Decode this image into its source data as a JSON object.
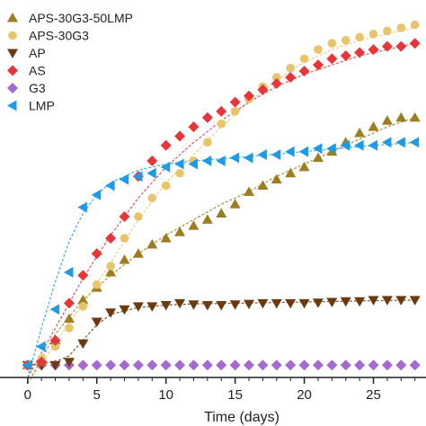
{
  "chart_data": {
    "type": "scatter",
    "xlabel": "Time (days)",
    "ylabel": "",
    "xlim": [
      -2,
      28.8
    ],
    "ylim": [
      -0.2,
      5.9
    ],
    "xticks": [
      "0",
      "5",
      "10",
      "15",
      "20",
      "25"
    ],
    "grid": false,
    "legend": "top-left",
    "series": [
      {
        "name": "APS-30G3-50LMP",
        "marker": "triangle-up",
        "color": "#9c7d1f",
        "x": [
          0,
          1,
          2,
          3,
          4,
          5,
          6,
          7,
          8,
          9,
          10,
          11,
          12,
          13,
          14,
          15,
          16,
          17,
          18,
          19,
          20,
          21,
          22,
          23,
          24,
          25,
          26,
          27,
          28
        ],
        "y": [
          0,
          0.05,
          0.4,
          0.75,
          1.05,
          1.25,
          1.5,
          1.7,
          1.8,
          1.95,
          2.05,
          2.15,
          2.25,
          2.35,
          2.45,
          2.6,
          2.8,
          2.9,
          3.0,
          3.1,
          3.2,
          3.35,
          3.45,
          3.6,
          3.75,
          3.85,
          3.95,
          4.0,
          4.0
        ]
      },
      {
        "name": "APS-30G3",
        "marker": "circle",
        "color": "#e8c46a",
        "x": [
          0,
          1,
          2,
          3,
          4,
          5,
          6,
          7,
          8,
          9,
          10,
          11,
          12,
          13,
          14,
          15,
          16,
          17,
          18,
          19,
          20,
          21,
          22,
          23,
          24,
          25,
          26,
          27,
          28
        ],
        "y": [
          0,
          0.1,
          0.3,
          0.6,
          0.95,
          1.3,
          1.6,
          2.05,
          2.4,
          2.7,
          2.9,
          3.1,
          3.3,
          3.6,
          3.9,
          4.1,
          4.3,
          4.5,
          4.65,
          4.8,
          4.95,
          5.1,
          5.2,
          5.25,
          5.3,
          5.35,
          5.4,
          5.45,
          5.5
        ]
      },
      {
        "name": "AP",
        "marker": "triangle-down",
        "color": "#6b3a10",
        "x": [
          0,
          1,
          2,
          3,
          4,
          5,
          6,
          7,
          8,
          9,
          10,
          11,
          12,
          13,
          14,
          15,
          16,
          17,
          18,
          19,
          20,
          21,
          22,
          23,
          24,
          25,
          26,
          27,
          28
        ],
        "y": [
          0,
          0,
          0,
          0.05,
          0.35,
          0.7,
          0.85,
          0.9,
          0.95,
          0.95,
          0.97,
          1.0,
          0.98,
          0.97,
          0.97,
          0.98,
          0.99,
          1.0,
          1.0,
          1.0,
          1.0,
          1.01,
          1.02,
          1.03,
          1.03,
          1.05,
          1.05,
          1.05,
          1.05
        ]
      },
      {
        "name": "AS",
        "marker": "diamond",
        "color": "#e8353a",
        "x": [
          0,
          1,
          2,
          3,
          4,
          5,
          6,
          7,
          8,
          9,
          10,
          11,
          12,
          13,
          14,
          15,
          16,
          17,
          18,
          19,
          20,
          21,
          22,
          23,
          24,
          25,
          26,
          27,
          28
        ],
        "y": [
          0,
          0.05,
          0.4,
          1.0,
          1.45,
          1.8,
          2.05,
          2.4,
          3.05,
          3.3,
          3.55,
          3.7,
          3.85,
          4.0,
          4.1,
          4.25,
          4.35,
          4.45,
          4.55,
          4.65,
          4.75,
          4.85,
          4.95,
          5.0,
          5.05,
          5.1,
          5.15,
          5.15,
          5.2
        ]
      },
      {
        "name": "G3",
        "marker": "diamond",
        "color": "#a569d2",
        "x": [
          0,
          1,
          2,
          3,
          4,
          5,
          6,
          7,
          8,
          9,
          10,
          11,
          12,
          13,
          14,
          15,
          16,
          17,
          18,
          19,
          20,
          21,
          22,
          23,
          24,
          25,
          26,
          27,
          28
        ],
        "y": [
          0,
          0,
          0,
          0,
          0,
          0,
          0,
          0,
          0,
          0,
          0,
          0,
          0,
          0,
          0,
          0,
          0,
          0,
          0,
          0,
          0,
          0,
          0,
          0,
          0,
          0,
          0,
          0,
          0
        ]
      },
      {
        "name": "LMP",
        "marker": "triangle-left",
        "color": "#1f9be6",
        "x": [
          0,
          1,
          2,
          3,
          4,
          5,
          6,
          7,
          8,
          9,
          10,
          11,
          12,
          13,
          14,
          15,
          16,
          17,
          18,
          19,
          20,
          21,
          22,
          23,
          24,
          25,
          26,
          27,
          28
        ],
        "y": [
          0,
          0.3,
          0.9,
          1.5,
          2.55,
          2.75,
          2.9,
          3.0,
          3.05,
          3.1,
          3.2,
          3.25,
          3.25,
          3.3,
          3.3,
          3.35,
          3.35,
          3.4,
          3.4,
          3.45,
          3.45,
          3.5,
          3.5,
          3.55,
          3.55,
          3.55,
          3.6,
          3.6,
          3.6
        ]
      }
    ],
    "fits": [
      {
        "color": "#9c7d1f",
        "x": [
          0,
          2,
          4,
          6,
          8,
          10,
          12,
          14,
          16,
          18,
          20,
          22,
          24,
          26,
          28
        ],
        "y": [
          -0.3,
          0.5,
          1.05,
          1.45,
          1.8,
          2.1,
          2.35,
          2.6,
          2.8,
          3.05,
          3.25,
          3.45,
          3.65,
          3.85,
          4.0
        ]
      },
      {
        "color": "#e8c46a",
        "x": [
          0,
          2,
          4,
          6,
          8,
          10,
          12,
          14,
          16,
          18,
          20,
          22,
          24,
          26,
          28
        ],
        "y": [
          -0.3,
          0.35,
          1.0,
          1.65,
          2.35,
          2.95,
          3.4,
          3.85,
          4.25,
          4.6,
          4.9,
          5.1,
          5.25,
          5.35,
          5.45
        ]
      },
      {
        "color": "#6b3a10",
        "x": [
          0,
          2,
          3,
          4,
          5,
          6,
          8,
          10,
          12,
          15,
          20,
          25,
          28
        ],
        "y": [
          0,
          0.05,
          0.15,
          0.4,
          0.65,
          0.82,
          0.93,
          0.97,
          0.99,
          1.0,
          1.02,
          1.04,
          1.05
        ]
      },
      {
        "color": "#e8353a",
        "x": [
          0,
          2,
          4,
          6,
          8,
          10,
          12,
          14,
          16,
          18,
          20,
          22,
          24,
          26,
          28
        ],
        "y": [
          -0.2,
          0.6,
          1.4,
          2.1,
          2.7,
          3.2,
          3.6,
          3.95,
          4.25,
          4.5,
          4.7,
          4.85,
          5.0,
          5.1,
          5.2
        ]
      },
      {
        "color": "#1f9be6",
        "x": [
          0,
          1,
          2,
          3,
          4,
          5,
          6,
          8,
          10,
          12,
          15,
          20,
          25,
          28
        ],
        "y": [
          -0.2,
          0.6,
          1.35,
          2.0,
          2.45,
          2.75,
          2.95,
          3.15,
          3.25,
          3.3,
          3.35,
          3.45,
          3.55,
          3.6
        ]
      }
    ]
  }
}
